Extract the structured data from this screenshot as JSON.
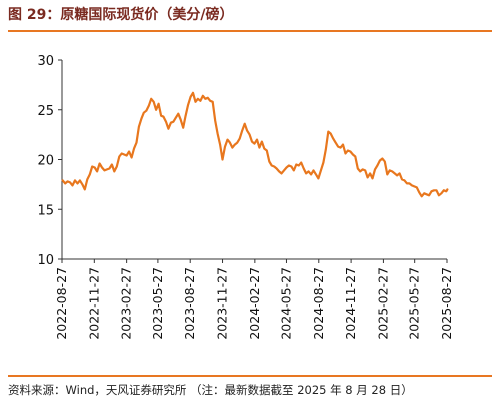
{
  "figure": {
    "title": "图 29：原糖国际现货价（美分/磅）",
    "source": "资料来源：Wind，天风证券研究所   （注：最新数据截至 2025 年 8 月 28 日）"
  },
  "colors": {
    "line": "#e8771e",
    "accent_rule": "#e87722",
    "title": "#7a2a20",
    "axis": "#333333"
  },
  "chart_data": {
    "type": "line",
    "title": "",
    "xlabel": "",
    "ylabel": "",
    "ylim": [
      10,
      30
    ],
    "yticks": [
      "10",
      "15",
      "20",
      "25",
      "30"
    ],
    "xlim": [
      "2022-08-27",
      "2025-08-27"
    ],
    "xticks": [
      "2022-08-27",
      "2022-11-27",
      "2023-02-27",
      "2023-05-27",
      "2023-08-27",
      "2023-11-27",
      "2024-02-27",
      "2024-05-27",
      "2024-08-27",
      "2024-11-27",
      "2025-02-27",
      "2025-05-27",
      "2025-08-27"
    ],
    "grid": false,
    "legend": "none",
    "x": [
      "2022-08-29",
      "2022-09-05",
      "2022-09-12",
      "2022-09-19",
      "2022-09-26",
      "2022-10-03",
      "2022-10-10",
      "2022-10-17",
      "2022-10-24",
      "2022-10-31",
      "2022-11-07",
      "2022-11-14",
      "2022-11-21",
      "2022-11-28",
      "2022-12-05",
      "2022-12-12",
      "2022-12-19",
      "2022-12-26",
      "2023-01-02",
      "2023-01-09",
      "2023-01-16",
      "2023-01-23",
      "2023-01-30",
      "2023-02-06",
      "2023-02-13",
      "2023-02-20",
      "2023-02-27",
      "2023-03-06",
      "2023-03-13",
      "2023-03-20",
      "2023-03-27",
      "2023-04-03",
      "2023-04-10",
      "2023-04-17",
      "2023-04-24",
      "2023-05-01",
      "2023-05-08",
      "2023-05-15",
      "2023-05-22",
      "2023-05-29",
      "2023-06-05",
      "2023-06-12",
      "2023-06-19",
      "2023-06-26",
      "2023-07-03",
      "2023-07-10",
      "2023-07-17",
      "2023-07-24",
      "2023-07-31",
      "2023-08-07",
      "2023-08-14",
      "2023-08-21",
      "2023-08-28",
      "2023-09-04",
      "2023-09-11",
      "2023-09-18",
      "2023-09-25",
      "2023-10-02",
      "2023-10-09",
      "2023-10-16",
      "2023-10-23",
      "2023-10-30",
      "2023-11-06",
      "2023-11-13",
      "2023-11-20",
      "2023-11-27",
      "2023-12-04",
      "2023-12-11",
      "2023-12-18",
      "2023-12-25",
      "2024-01-01",
      "2024-01-08",
      "2024-01-15",
      "2024-01-22",
      "2024-01-29",
      "2024-02-05",
      "2024-02-12",
      "2024-02-19",
      "2024-02-26",
      "2024-03-04",
      "2024-03-11",
      "2024-03-18",
      "2024-03-25",
      "2024-04-01",
      "2024-04-08",
      "2024-04-15",
      "2024-04-22",
      "2024-04-29",
      "2024-05-06",
      "2024-05-13",
      "2024-05-20",
      "2024-05-27",
      "2024-06-03",
      "2024-06-10",
      "2024-06-17",
      "2024-06-24",
      "2024-07-01",
      "2024-07-08",
      "2024-07-15",
      "2024-07-22",
      "2024-07-29",
      "2024-08-05",
      "2024-08-12",
      "2024-08-19",
      "2024-08-26",
      "2024-09-02",
      "2024-09-09",
      "2024-09-16",
      "2024-09-23",
      "2024-09-30",
      "2024-10-07",
      "2024-10-14",
      "2024-10-21",
      "2024-10-28",
      "2024-11-04",
      "2024-11-11",
      "2024-11-18",
      "2024-11-25",
      "2024-12-02",
      "2024-12-09",
      "2024-12-16",
      "2024-12-23",
      "2024-12-30",
      "2025-01-06",
      "2025-01-13",
      "2025-01-20",
      "2025-01-27",
      "2025-02-03",
      "2025-02-10",
      "2025-02-17",
      "2025-02-24",
      "2025-03-03",
      "2025-03-10",
      "2025-03-17",
      "2025-03-24",
      "2025-03-31",
      "2025-04-07",
      "2025-04-14",
      "2025-04-21",
      "2025-04-28",
      "2025-05-05",
      "2025-05-12",
      "2025-05-19",
      "2025-05-26",
      "2025-06-02",
      "2025-06-09",
      "2025-06-16",
      "2025-06-23",
      "2025-06-30",
      "2025-07-07",
      "2025-07-14",
      "2025-07-21",
      "2025-07-28",
      "2025-08-04",
      "2025-08-11",
      "2025-08-18",
      "2025-08-25",
      "2025-08-28"
    ],
    "series": [
      {
        "values": [
          17.9,
          17.6,
          17.8,
          17.7,
          17.4,
          17.9,
          17.6,
          17.9,
          17.5,
          17.0,
          18.0,
          18.5,
          19.3,
          19.2,
          18.8,
          19.6,
          19.2,
          18.9,
          19.0,
          19.1,
          19.5,
          18.8,
          19.3,
          20.3,
          20.6,
          20.5,
          20.4,
          20.8,
          20.2,
          21.1,
          21.7,
          23.3,
          24.1,
          24.7,
          24.9,
          25.4,
          26.1,
          25.8,
          25.0,
          25.6,
          24.4,
          24.3,
          23.8,
          23.1,
          23.7,
          23.8,
          24.2,
          24.6,
          24.0,
          23.2,
          24.4,
          25.5,
          26.3,
          26.7,
          25.8,
          26.1,
          25.9,
          26.4,
          26.1,
          26.2,
          25.9,
          25.8,
          23.9,
          22.6,
          21.5,
          20.0,
          21.3,
          22.0,
          21.7,
          21.2,
          21.5,
          21.7,
          22.1,
          22.9,
          23.6,
          22.9,
          22.5,
          21.8,
          21.6,
          22.0,
          21.2,
          21.8,
          21.1,
          20.9,
          19.8,
          19.4,
          19.3,
          19.1,
          18.8,
          18.6,
          18.9,
          19.2,
          19.4,
          19.3,
          18.9,
          19.5,
          19.4,
          19.7,
          19.1,
          18.6,
          18.8,
          18.5,
          18.9,
          18.5,
          18.1,
          18.9,
          19.7,
          21.0,
          22.8,
          22.6,
          22.1,
          21.7,
          21.3,
          21.2,
          21.5,
          20.6,
          20.9,
          20.8,
          20.5,
          20.3,
          19.1,
          18.8,
          19.0,
          18.9,
          18.2,
          18.6,
          18.1,
          19.0,
          19.4,
          19.9,
          20.1,
          19.8,
          18.5,
          18.9,
          18.8,
          18.6,
          18.4,
          18.6,
          18.0,
          17.9,
          17.6,
          17.6,
          17.4,
          17.3,
          17.2,
          16.7,
          16.3,
          16.6,
          16.5,
          16.4,
          16.8,
          16.9,
          16.9,
          16.4,
          16.6,
          16.9,
          16.8,
          17.0
        ]
      }
    ]
  }
}
